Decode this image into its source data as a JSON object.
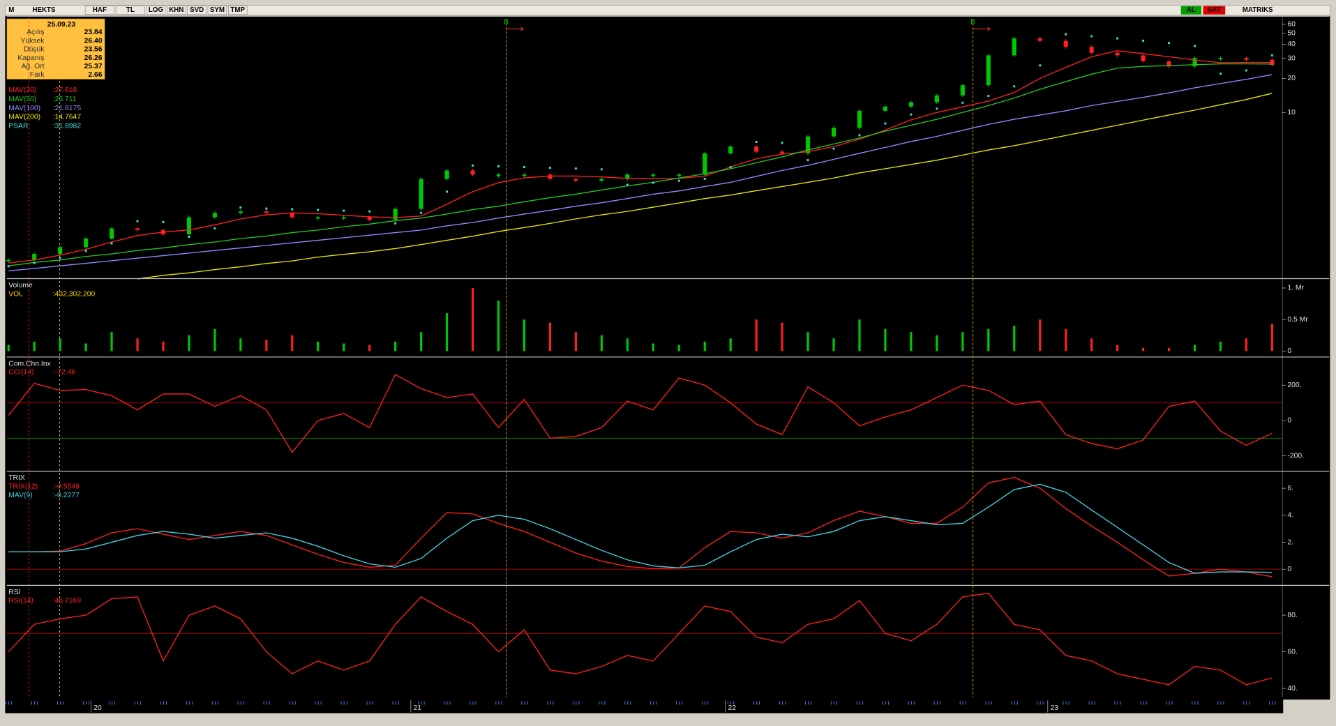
{
  "toolbar": {
    "logo": "M",
    "symbol": "HEKTS",
    "buttons": [
      "HAF",
      "TL",
      "LOG",
      "KHN",
      "SVD",
      "SYM",
      "TMP"
    ],
    "buy": "AL",
    "sell": "SAT",
    "brand": "MATRIKS"
  },
  "info_box": {
    "date": "25.09.23",
    "rows": [
      {
        "label": "Açılış",
        "value": "23.84"
      },
      {
        "label": "Yüksek",
        "value": "26.40"
      },
      {
        "label": "Düşük",
        "value": "23.56"
      },
      {
        "label": "Kapanış",
        "value": "26.26"
      },
      {
        "label": "Ağ. Ort",
        "value": "25.37"
      },
      {
        "label": "Fark",
        "value": "2.66"
      }
    ]
  },
  "date_axis": {
    "xlim": [
      0,
      49
    ],
    "xticks": [
      {
        "value": 3.2,
        "label": "20"
      },
      {
        "value": 15.6,
        "label": "21"
      },
      {
        "value": 27.8,
        "label": "22"
      },
      {
        "value": 40.3,
        "label": "23"
      }
    ]
  },
  "signals": [
    {
      "x": 19.3,
      "label": "B"
    },
    {
      "x": 37.4,
      "label": "B"
    }
  ],
  "chart_data": [
    {
      "type": "candlestick",
      "log_scale": true,
      "ylim": [
        0.354,
        69.5
      ],
      "yticks": [
        60,
        50,
        40,
        30,
        20,
        10
      ],
      "up_color": "#00c800",
      "down_color": "#ff2020",
      "close": [
        0.5,
        0.565,
        0.649,
        0.771,
        0.949,
        0.917,
        0.841,
        1.19,
        1.3,
        1.34,
        1.3,
        1.19,
        1.19,
        1.19,
        1.13,
        1.41,
        2.59,
        3.08,
        2.83,
        2.83,
        2.83,
        2.59,
        2.5,
        2.59,
        2.83,
        2.83,
        2.83,
        4.36,
        5.0,
        4.51,
        4.36,
        6.15,
        7.32,
        10.35,
        11.29,
        12.31,
        14.14,
        17.4,
        31.9,
        45.1,
        42.8,
        37.9,
        33.6,
        31.9,
        28.3,
        25.5,
        30.3,
        30.3,
        29.2,
        26.26
      ],
      "series": [
        {
          "name": "MAV(20)",
          "legend": ":27.618",
          "color": "#ff2020",
          "style": "line",
          "values": [
            0.47,
            0.5,
            0.55,
            0.62,
            0.72,
            0.82,
            0.88,
            0.92,
            1.02,
            1.15,
            1.25,
            1.3,
            1.28,
            1.24,
            1.2,
            1.18,
            1.22,
            1.55,
            2.0,
            2.4,
            2.65,
            2.75,
            2.75,
            2.7,
            2.62,
            2.6,
            2.62,
            2.75,
            3.3,
            3.9,
            4.3,
            4.5,
            5.0,
            5.8,
            7.0,
            8.6,
            10.0,
            11.2,
            12.6,
            15.0,
            20,
            25,
            31,
            35,
            33,
            31,
            29,
            27.5,
            27.6,
            27.618
          ]
        },
        {
          "name": "MAV(50)",
          "legend": ":26.711",
          "color": "#20c820",
          "style": "line",
          "values": [
            0.443,
            0.475,
            0.5,
            0.536,
            0.565,
            0.605,
            0.638,
            0.684,
            0.72,
            0.771,
            0.813,
            0.871,
            0.917,
            0.982,
            1.035,
            1.11,
            1.17,
            1.27,
            1.39,
            1.49,
            1.63,
            1.77,
            1.9,
            2.07,
            2.25,
            2.42,
            2.64,
            2.88,
            3.19,
            3.6,
            4.06,
            4.67,
            5.27,
            5.95,
            6.84,
            7.71,
            8.71,
            10.0,
            11.5,
            13.4,
            16.0,
            18.7,
            21.8,
            24.6,
            25.5,
            25.9,
            26.4,
            26.8,
            26.8,
            26.711
          ]
        },
        {
          "name": "MAV(100)",
          "legend": ":21.6175",
          "color": "#8c8cff",
          "style": "line",
          "values": [
            0.4,
            0.421,
            0.443,
            0.467,
            0.492,
            0.518,
            0.546,
            0.575,
            0.605,
            0.638,
            0.672,
            0.708,
            0.745,
            0.785,
            0.827,
            0.871,
            0.917,
            1.0,
            1.07,
            1.17,
            1.27,
            1.37,
            1.49,
            1.6,
            1.74,
            1.9,
            2.03,
            2.22,
            2.42,
            2.73,
            3.08,
            3.42,
            3.86,
            4.36,
            4.92,
            5.55,
            6.16,
            6.95,
            7.85,
            8.71,
            9.49,
            10.35,
            11.5,
            12.5,
            13.6,
            14.9,
            16.5,
            18.0,
            19.6,
            21.6175
          ]
        },
        {
          "name": "MAV(200)",
          "legend": ":14.7647",
          "color": "#e8e800",
          "style": "line",
          "values": [
            null,
            null,
            null,
            null,
            null,
            0.34,
            0.366,
            0.385,
            0.411,
            0.435,
            0.465,
            0.49,
            0.53,
            0.56,
            0.59,
            0.63,
            0.684,
            0.745,
            0.81,
            0.89,
            0.965,
            1.05,
            1.15,
            1.25,
            1.34,
            1.46,
            1.59,
            1.74,
            1.87,
            2.04,
            2.22,
            2.42,
            2.64,
            2.93,
            3.19,
            3.48,
            3.79,
            4.21,
            4.67,
            5.09,
            5.65,
            6.27,
            6.95,
            7.71,
            8.56,
            9.5,
            10.5,
            11.7,
            13.0,
            14.7647
          ]
        },
        {
          "name": "PSAR",
          "legend": ":31.8982",
          "color": "#40e0e0",
          "style": "dots",
          "values": [
            0.44,
            0.47,
            0.52,
            0.6,
            0.7,
            1.1,
            1.08,
            0.8,
            0.95,
            1.45,
            1.42,
            1.4,
            1.38,
            1.36,
            1.34,
            1.05,
            1.3,
            2.0,
            3.4,
            3.35,
            3.3,
            3.25,
            3.2,
            3.15,
            2.3,
            2.4,
            2.5,
            2.6,
            3.3,
            5.5,
            5.4,
            3.8,
            4.8,
            6.3,
            8.0,
            9.6,
            10.8,
            12.2,
            14.0,
            17,
            26,
            49,
            47,
            45,
            43,
            41,
            38.5,
            22,
            23.5,
            31.8982
          ]
        }
      ]
    },
    {
      "type": "bar",
      "title": "Volume",
      "ylim": [
        -0.068,
        1.135
      ],
      "yticks": [
        {
          "value": 1,
          "label": "1. Mr"
        },
        {
          "value": 0.5,
          "label": "0.5 Mr"
        },
        0
      ],
      "series": [
        {
          "name": "VOL",
          "legend": ":432,302,200",
          "color": "#ffd000",
          "values": [
            0.1,
            0.15,
            0.2,
            0.12,
            0.3,
            0.2,
            0.15,
            0.25,
            0.35,
            0.2,
            0.18,
            0.25,
            0.15,
            0.12,
            0.1,
            0.15,
            0.3,
            0.6,
            1.0,
            0.8,
            0.5,
            0.45,
            0.3,
            0.25,
            0.2,
            0.12,
            0.1,
            0.15,
            0.2,
            0.5,
            0.45,
            0.3,
            0.2,
            0.5,
            0.35,
            0.3,
            0.25,
            0.3,
            0.35,
            0.4,
            0.5,
            0.35,
            0.2,
            0.1,
            0.05,
            0.05,
            0.1,
            0.15,
            0.2,
            0.432
          ]
        }
      ]
    },
    {
      "type": "line",
      "title": "Com.Chn.Inx",
      "ylim": [
        -277,
        354
      ],
      "yticks": [
        {
          "value": 200,
          "label": "200."
        },
        0,
        {
          "value": -200,
          "label": "-200."
        }
      ],
      "reference_lines": [
        {
          "value": 100,
          "color": "#a00000"
        },
        {
          "value": -100,
          "color": "#008000"
        }
      ],
      "series": [
        {
          "name": "CCI(14)",
          "legend": ":-72.46",
          "color": "#ff2020",
          "values": [
            30,
            210,
            170,
            175,
            140,
            60,
            150,
            150,
            80,
            140,
            60,
            -180,
            0,
            40,
            -40,
            260,
            180,
            130,
            150,
            -40,
            120,
            -100,
            -90,
            -40,
            110,
            60,
            240,
            200,
            100,
            -20,
            -80,
            190,
            100,
            -30,
            20,
            60,
            130,
            200,
            170,
            90,
            110,
            -80,
            -130,
            -160,
            -110,
            80,
            110,
            -60,
            -140,
            -72.46
          ]
        }
      ]
    },
    {
      "type": "line",
      "title": "TRIX",
      "ylim": [
        -1.07,
        7.2
      ],
      "yticks": [
        {
          "value": 6,
          "label": "6."
        },
        {
          "value": 4,
          "label": "4."
        },
        {
          "value": 2,
          "label": "2."
        },
        0
      ],
      "reference_lines": [
        {
          "value": 0,
          "color": "#a00000"
        }
      ],
      "series": [
        {
          "name": "TRIX(12)",
          "legend": ":-0.5549",
          "color": "#ff2020",
          "values": [
            1.3,
            1.3,
            1.35,
            1.9,
            2.7,
            3.0,
            2.6,
            2.2,
            2.5,
            2.8,
            2.5,
            1.8,
            1.1,
            0.5,
            0.15,
            0.3,
            2.3,
            4.2,
            4.1,
            3.4,
            2.8,
            2.0,
            1.2,
            0.6,
            0.2,
            0.05,
            0.1,
            1.6,
            2.8,
            2.7,
            2.3,
            2.7,
            3.6,
            4.3,
            3.9,
            3.4,
            3.4,
            4.6,
            6.4,
            6.8,
            6.0,
            4.5,
            3.2,
            2.0,
            0.7,
            -0.5,
            -0.3,
            0.0,
            -0.2,
            -0.5549
          ]
        },
        {
          "name": "MAV(9)",
          "legend": ":-0.2277",
          "color": "#40d0e0",
          "values": [
            1.3,
            1.3,
            1.3,
            1.5,
            2.0,
            2.5,
            2.8,
            2.6,
            2.3,
            2.5,
            2.7,
            2.3,
            1.7,
            1.0,
            0.4,
            0.15,
            0.8,
            2.3,
            3.6,
            4.0,
            3.7,
            3.0,
            2.2,
            1.4,
            0.7,
            0.25,
            0.1,
            0.3,
            1.3,
            2.2,
            2.6,
            2.4,
            2.8,
            3.6,
            3.9,
            3.6,
            3.3,
            3.4,
            4.6,
            5.9,
            6.3,
            5.7,
            4.4,
            3.1,
            1.8,
            0.5,
            -0.3,
            -0.2,
            -0.2,
            -0.2277
          ]
        }
      ]
    },
    {
      "type": "line",
      "title": "RSI",
      "ylim": [
        35.3,
        95.8
      ],
      "yticks": [
        {
          "value": 80,
          "label": "80."
        },
        {
          "value": 60,
          "label": "60."
        },
        {
          "value": 40,
          "label": "40."
        }
      ],
      "reference_lines": [
        {
          "value": 70,
          "color": "#a00000"
        }
      ],
      "series": [
        {
          "name": "RSI(14)",
          "legend": ":45.7169",
          "color": "#ff2020",
          "values": [
            60,
            75,
            78,
            80,
            89,
            90,
            55,
            80,
            85,
            78,
            60,
            48,
            55,
            50,
            55,
            75,
            90,
            82,
            75,
            60,
            72,
            50,
            48,
            52,
            58,
            55,
            70,
            85,
            82,
            68,
            65,
            75,
            78,
            88,
            70,
            66,
            75,
            90,
            92,
            75,
            72,
            58,
            55,
            48,
            45,
            42,
            52,
            50,
            42,
            45.7169
          ]
        }
      ]
    }
  ]
}
